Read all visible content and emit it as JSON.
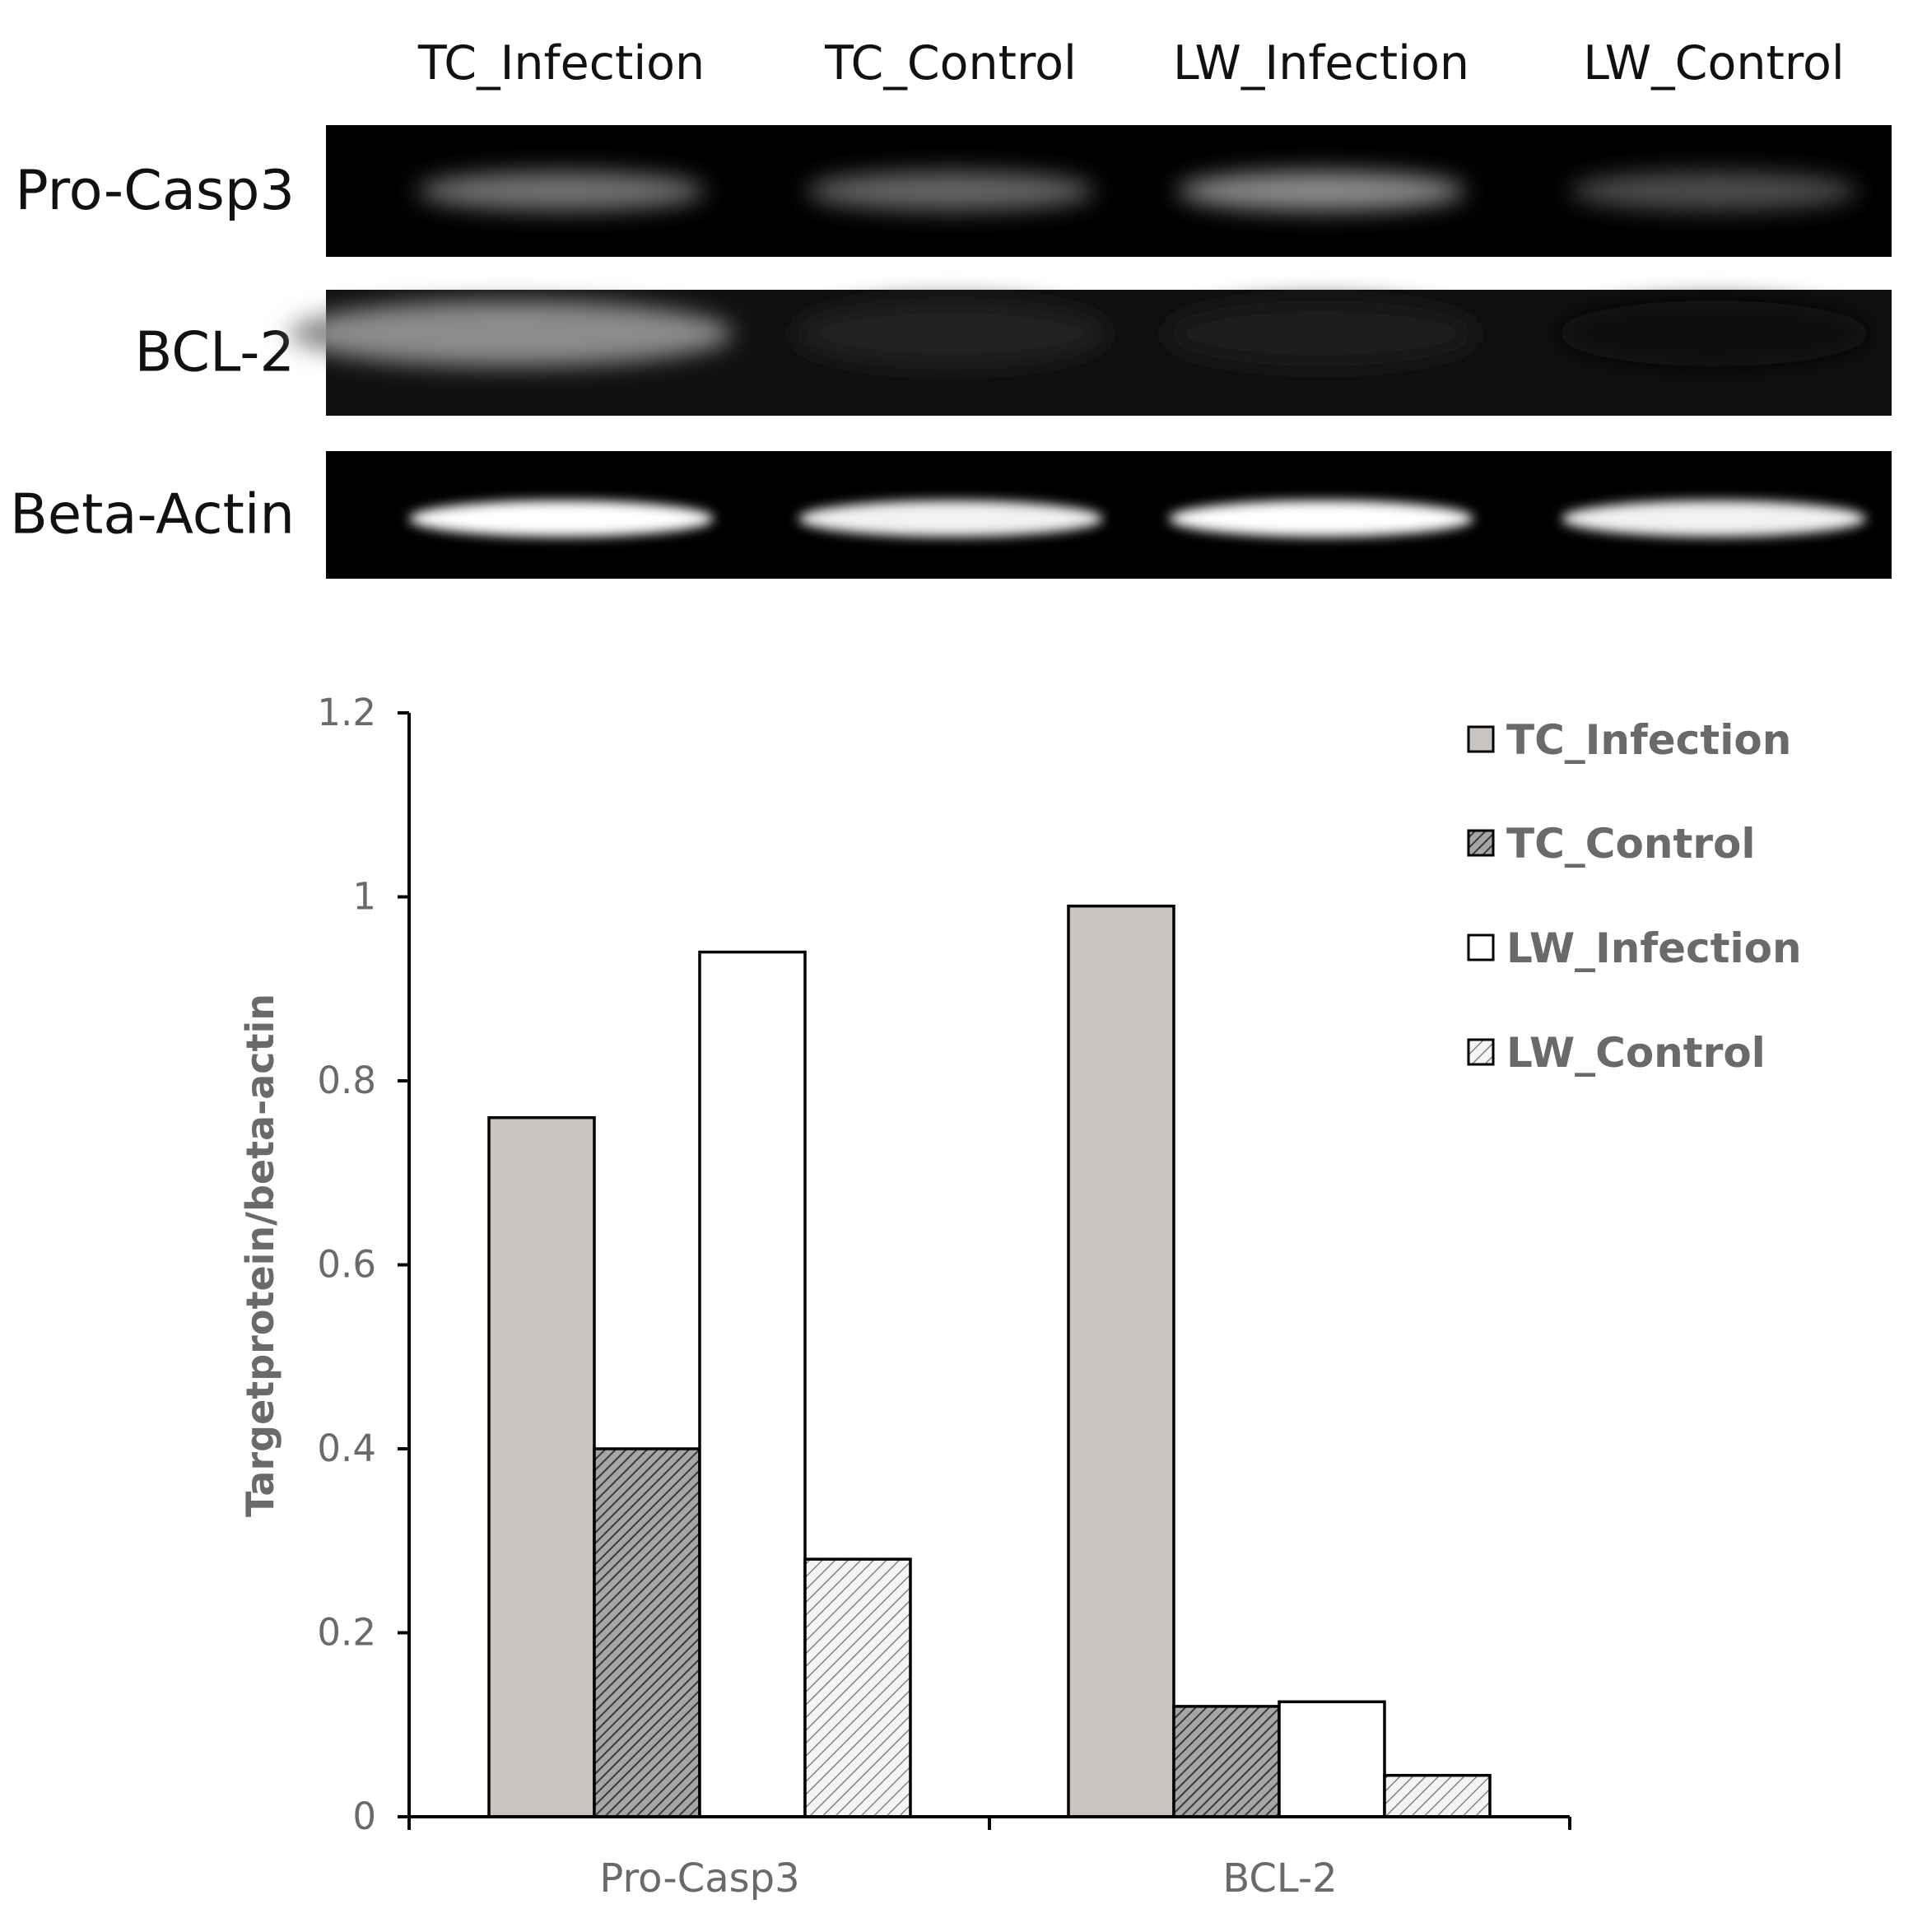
{
  "blot": {
    "lane_labels": [
      "TC_Infection",
      "TC_Control",
      "LW_Infection",
      "LW_Control"
    ],
    "rows": [
      {
        "label": "Pro-Casp3",
        "band_intensity": [
          0.45,
          0.4,
          0.55,
          0.3
        ]
      },
      {
        "label": "BCL-2",
        "band_intensity": [
          0.55,
          0.14,
          0.12,
          0.04
        ]
      },
      {
        "label": "Beta-Actin",
        "band_intensity": [
          1.0,
          0.95,
          1.0,
          0.95
        ]
      }
    ]
  },
  "chart_data": {
    "type": "bar",
    "categories": [
      "Pro-Casp3",
      "BCL-2"
    ],
    "series": [
      {
        "name": "TC_Infection",
        "values": [
          0.76,
          0.99
        ],
        "fill": "#c7c4c1",
        "pattern": "solid"
      },
      {
        "name": "TC_Control",
        "values": [
          0.4,
          0.12
        ],
        "fill": "#9a9a9a",
        "pattern": "dense-hatch"
      },
      {
        "name": "LW_Infection",
        "values": [
          0.94,
          0.125
        ],
        "fill": "#ffffff",
        "pattern": "solid"
      },
      {
        "name": "LW_Control",
        "values": [
          0.28,
          0.045
        ],
        "fill": "#e0e0e0",
        "pattern": "light-hatch"
      }
    ],
    "ylabel": "Targetprotein/beta-actin",
    "ylim": [
      0,
      1.2
    ],
    "yticks": [
      "0",
      "0.2",
      "0.4",
      "0.6",
      "0.8",
      "1",
      "1.2"
    ],
    "grid": false,
    "legend_position": "right"
  }
}
